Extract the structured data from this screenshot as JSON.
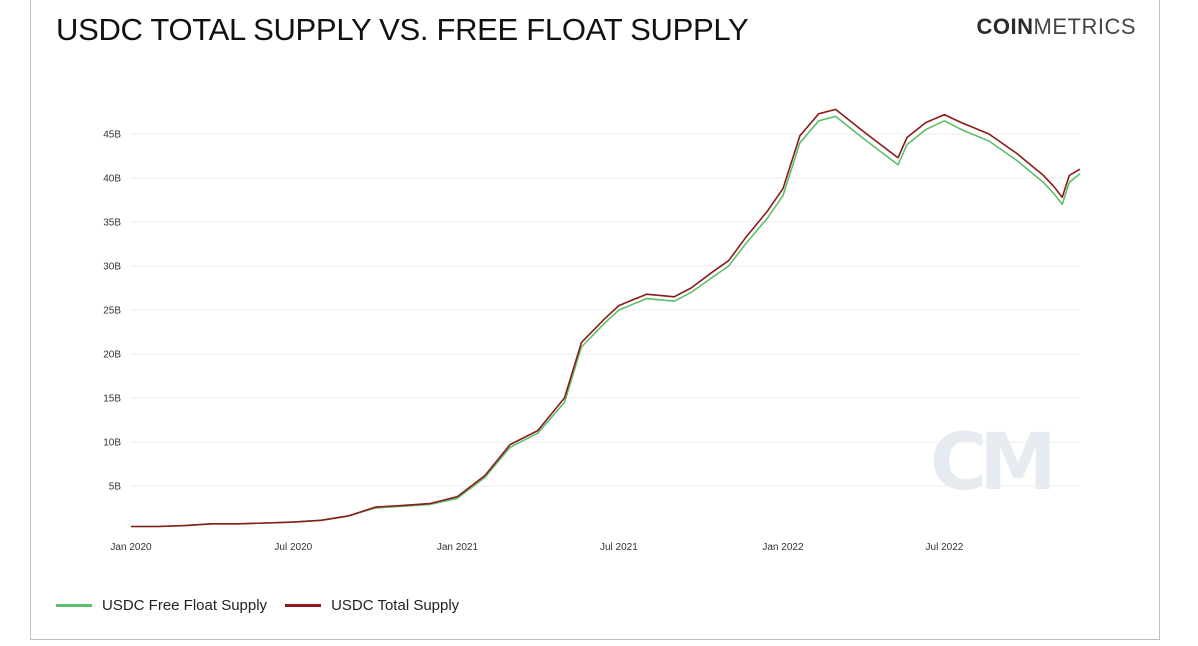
{
  "header": {
    "title": "USDC TOTAL SUPPLY VS. FREE FLOAT SUPPLY",
    "logo_bold": "COIN",
    "logo_light": "METRICS",
    "watermark": "CM"
  },
  "colors": {
    "free_float": "#5cbf6a",
    "total": "#8b1a1a",
    "grid": "#eeeeee"
  },
  "chart_data": {
    "type": "line",
    "title": "USDC TOTAL SUPPLY VS. FREE FLOAT SUPPLY",
    "xlabel": "",
    "ylabel": "",
    "xlim": [
      "2020-01-01",
      "2022-11-30"
    ],
    "ylim": [
      0,
      50
    ],
    "y_unit": "B",
    "grid": true,
    "legend_position": "bottom-left",
    "y_ticks": [
      5,
      10,
      15,
      20,
      25,
      30,
      35,
      40,
      45
    ],
    "y_tick_labels": [
      "5B",
      "10B",
      "15B",
      "20B",
      "25B",
      "30B",
      "35B",
      "40B",
      "45B"
    ],
    "x_ticks": [
      "2020-01-01",
      "2020-07-01",
      "2021-01-01",
      "2021-07-01",
      "2022-01-01",
      "2022-07-01"
    ],
    "x_tick_labels": [
      "Jan 2020",
      "Jul 2020",
      "Jan 2021",
      "Jul 2021",
      "Jan 2022",
      "Jul 2022"
    ],
    "series": [
      {
        "name": "USDC Free Float Supply",
        "color": "#5cbf6a",
        "points": [
          [
            "2020-01-01",
            0.4
          ],
          [
            "2020-02-01",
            0.4
          ],
          [
            "2020-03-01",
            0.5
          ],
          [
            "2020-04-01",
            0.7
          ],
          [
            "2020-05-01",
            0.7
          ],
          [
            "2020-06-01",
            0.8
          ],
          [
            "2020-07-01",
            0.9
          ],
          [
            "2020-08-01",
            1.1
          ],
          [
            "2020-09-01",
            1.6
          ],
          [
            "2020-10-01",
            2.5
          ],
          [
            "2020-11-01",
            2.7
          ],
          [
            "2020-12-01",
            2.9
          ],
          [
            "2021-01-01",
            3.6
          ],
          [
            "2021-02-01",
            6.0
          ],
          [
            "2021-03-01",
            9.4
          ],
          [
            "2021-04-01",
            11.0
          ],
          [
            "2021-05-01",
            14.5
          ],
          [
            "2021-05-20",
            20.8
          ],
          [
            "2021-06-15",
            23.5
          ],
          [
            "2021-07-01",
            25.0
          ],
          [
            "2021-08-01",
            26.3
          ],
          [
            "2021-09-01",
            26.0
          ],
          [
            "2021-09-20",
            27.0
          ],
          [
            "2021-10-15",
            28.8
          ],
          [
            "2021-11-01",
            30.0
          ],
          [
            "2021-11-20",
            32.5
          ],
          [
            "2021-12-15",
            35.5
          ],
          [
            "2022-01-01",
            38.0
          ],
          [
            "2022-01-20",
            44.0
          ],
          [
            "2022-02-10",
            46.5
          ],
          [
            "2022-03-01",
            47.0
          ],
          [
            "2022-04-01",
            44.5
          ],
          [
            "2022-05-10",
            41.5
          ],
          [
            "2022-05-20",
            43.8
          ],
          [
            "2022-06-10",
            45.5
          ],
          [
            "2022-07-01",
            46.5
          ],
          [
            "2022-07-20",
            45.5
          ],
          [
            "2022-08-20",
            44.2
          ],
          [
            "2022-09-20",
            42.0
          ],
          [
            "2022-10-20",
            39.5
          ],
          [
            "2022-11-01",
            38.2
          ],
          [
            "2022-11-10",
            37.0
          ],
          [
            "2022-11-18",
            39.5
          ],
          [
            "2022-11-30",
            40.5
          ]
        ]
      },
      {
        "name": "USDC Total Supply",
        "color": "#8b1a1a",
        "points": [
          [
            "2020-01-01",
            0.4
          ],
          [
            "2020-02-01",
            0.4
          ],
          [
            "2020-03-01",
            0.5
          ],
          [
            "2020-04-01",
            0.7
          ],
          [
            "2020-05-01",
            0.7
          ],
          [
            "2020-06-01",
            0.8
          ],
          [
            "2020-07-01",
            0.9
          ],
          [
            "2020-08-01",
            1.1
          ],
          [
            "2020-09-01",
            1.6
          ],
          [
            "2020-10-01",
            2.6
          ],
          [
            "2020-11-01",
            2.8
          ],
          [
            "2020-12-01",
            3.0
          ],
          [
            "2021-01-01",
            3.8
          ],
          [
            "2021-02-01",
            6.2
          ],
          [
            "2021-03-01",
            9.7
          ],
          [
            "2021-04-01",
            11.3
          ],
          [
            "2021-05-01",
            15.0
          ],
          [
            "2021-05-20",
            21.3
          ],
          [
            "2021-06-15",
            24.0
          ],
          [
            "2021-07-01",
            25.5
          ],
          [
            "2021-08-01",
            26.8
          ],
          [
            "2021-09-01",
            26.5
          ],
          [
            "2021-09-20",
            27.5
          ],
          [
            "2021-10-15",
            29.4
          ],
          [
            "2021-11-01",
            30.6
          ],
          [
            "2021-11-20",
            33.2
          ],
          [
            "2021-12-15",
            36.3
          ],
          [
            "2022-01-01",
            38.8
          ],
          [
            "2022-01-20",
            44.8
          ],
          [
            "2022-02-10",
            47.3
          ],
          [
            "2022-03-01",
            47.8
          ],
          [
            "2022-04-01",
            45.3
          ],
          [
            "2022-05-10",
            42.3
          ],
          [
            "2022-05-20",
            44.6
          ],
          [
            "2022-06-10",
            46.3
          ],
          [
            "2022-07-01",
            47.2
          ],
          [
            "2022-07-20",
            46.3
          ],
          [
            "2022-08-20",
            45.0
          ],
          [
            "2022-09-20",
            42.8
          ],
          [
            "2022-10-20",
            40.3
          ],
          [
            "2022-11-01",
            39.0
          ],
          [
            "2022-11-10",
            37.8
          ],
          [
            "2022-11-18",
            40.3
          ],
          [
            "2022-11-30",
            41.0
          ]
        ]
      }
    ]
  }
}
